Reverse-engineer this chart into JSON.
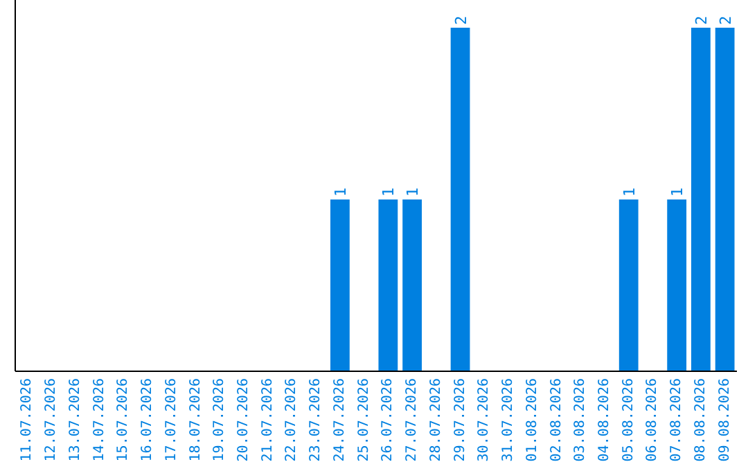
{
  "chart_data": {
    "type": "bar",
    "categories": [
      "11.07.2026",
      "12.07.2026",
      "13.07.2026",
      "14.07.2026",
      "15.07.2026",
      "16.07.2026",
      "17.07.2026",
      "18.07.2026",
      "19.07.2026",
      "20.07.2026",
      "21.07.2026",
      "22.07.2026",
      "23.07.2026",
      "24.07.2026",
      "25.07.2026",
      "26.07.2026",
      "27.07.2026",
      "28.07.2026",
      "29.07.2026",
      "30.07.2026",
      "31.07.2026",
      "01.08.2026",
      "02.08.2026",
      "03.08.2026",
      "04.08.2026",
      "05.08.2026",
      "06.08.2026",
      "07.08.2026",
      "08.08.2026",
      "09.08.2026"
    ],
    "values": [
      null,
      null,
      null,
      null,
      null,
      null,
      null,
      null,
      null,
      null,
      null,
      null,
      null,
      1,
      null,
      1,
      1,
      null,
      2,
      null,
      null,
      null,
      null,
      null,
      null,
      1,
      null,
      1,
      2,
      2
    ],
    "data_labels": true,
    "color": "#0080e0",
    "ylim": [
      0,
      2
    ],
    "tick_labels": "x"
  }
}
